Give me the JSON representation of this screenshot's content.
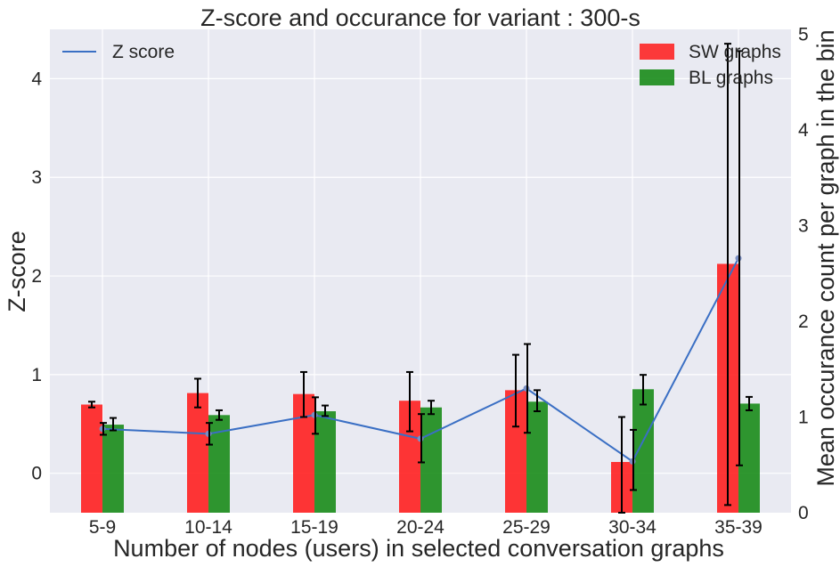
{
  "chart_data": {
    "type": "bar",
    "title": "Z-score and occurance for variant : 300-s",
    "xlabel": "Number of nodes (users) in selected conversation graphs",
    "ylabel": "Z-score",
    "y2label": "Mean occurance count per graph in the bin",
    "categories": [
      "5-9",
      "10-14",
      "15-19",
      "20-24",
      "25-29",
      "30-34",
      "35-39"
    ],
    "ylim": [
      -0.4,
      4.5
    ],
    "yticks": [
      "0",
      "1",
      "2",
      "3",
      "4"
    ],
    "y2lim": [
      0,
      5.05
    ],
    "y2ticks": [
      "0",
      "1",
      "2",
      "3",
      "4",
      "5"
    ],
    "grid": true,
    "series": [
      {
        "name": "SW graphs",
        "kind": "bar",
        "axis": "right",
        "color": "#ff1a1a",
        "values": [
          1.13,
          1.25,
          1.24,
          1.17,
          1.28,
          0.53,
          2.6
        ],
        "err_low": [
          1.1,
          1.1,
          1.0,
          0.85,
          0.9,
          0.0,
          0.08
        ],
        "err_high": [
          1.16,
          1.4,
          1.47,
          1.47,
          1.65,
          1.0,
          4.9
        ]
      },
      {
        "name": "BL graphs",
        "kind": "bar",
        "axis": "right",
        "color": "#1a8c1a",
        "values": [
          0.92,
          1.02,
          1.06,
          1.1,
          1.16,
          1.29,
          1.14
        ],
        "err_low": [
          0.86,
          0.97,
          1.01,
          1.03,
          1.06,
          1.13,
          1.07
        ],
        "err_high": [
          0.99,
          1.07,
          1.12,
          1.17,
          1.28,
          1.44,
          1.21
        ]
      },
      {
        "name": "Z score",
        "kind": "line",
        "axis": "left",
        "color": "#3a6fc4",
        "values": [
          0.45,
          0.4,
          0.59,
          0.35,
          0.86,
          0.12,
          2.18
        ],
        "err_low": [
          0.39,
          0.29,
          0.4,
          0.11,
          0.41,
          -0.17,
          0.08
        ],
        "err_high": [
          0.51,
          0.51,
          0.77,
          0.6,
          1.31,
          0.44,
          4.28
        ]
      }
    ],
    "legend_left": {
      "placement": "upper-left",
      "entries": [
        "Z score"
      ]
    },
    "legend_right": {
      "placement": "upper-right",
      "entries": [
        "SW graphs",
        "BL graphs"
      ]
    }
  }
}
